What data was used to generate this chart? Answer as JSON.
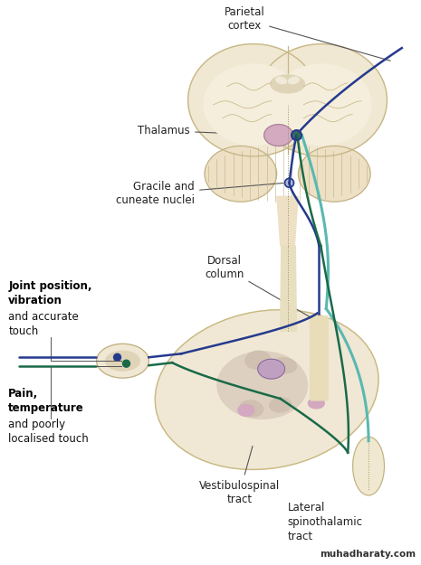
{
  "bg": "#ffffff",
  "brain_fill": "#f0e8d2",
  "brain_inner": "#e8dcc0",
  "brain_edge": "#c8b888",
  "cerebellum_fill": "#ede0c5",
  "cerebellum_edge": "#c0b080",
  "brainstem_fill": "#ede0c5",
  "sc_tube_fill": "#e8dfc0",
  "sc_tube_edge": "#c0b878",
  "thalamus_fill": "#d4aac0",
  "thalamus_edge": "#a07890",
  "gn_fill": "#b8b0d0",
  "gn_edge": "#807098",
  "sc_cross_fill": "#f0e8d5",
  "sc_cross_edge": "#c8b880",
  "gm_fill": "#ddd0c0",
  "gm_edge": "#c0b0a0",
  "horn_fill": "#cfc0b0",
  "purple_nuc": "#c0a0c0",
  "pink_nuc": "#d4a8c0",
  "nerve_fill": "#f0e8d5",
  "nerve_edge": "#c0b080",
  "small_sc_fill": "#f0e8d0",
  "small_sc_edge": "#c0b080",
  "blue_tract": "#253a8e",
  "green_tract": "#1a6a48",
  "teal_tract": "#5ab8b0",
  "label_color": "#222222",
  "watermark_color": "#333333",
  "annot_parietal": "Parietal\ncortex",
  "annot_thalamus": "Thalamus",
  "annot_gracile": "Gracile and\ncuneate nuclei",
  "annot_joint": "Joint position,\nvibration",
  "annot_joint2": "and accurate\ntouch",
  "annot_dorsal": "Dorsal\ncolumn",
  "annot_pain": "Pain,\ntemperature",
  "annot_pain2": "and poorly\nlocalised touch",
  "annot_vestib": "Vestibulospinal\ntract",
  "annot_lateral": "Lateral\nspinothalamic\ntract",
  "annot_watermark": "muhadharaty.com"
}
